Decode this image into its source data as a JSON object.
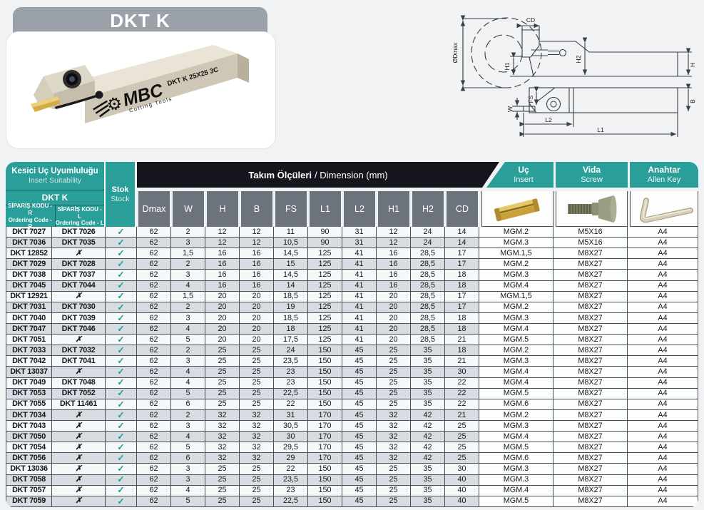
{
  "product": {
    "title": "DKT K",
    "marking": "DKT K 25X25 3C",
    "brand": "MBC",
    "brand_sub": "Cutting Tools"
  },
  "diagram": {
    "labels": {
      "dmax": "ØDmax",
      "cd": "CD",
      "h1": "H1",
      "h2": "H2",
      "h": "H",
      "fs": "FS",
      "w": "W",
      "l2": "L2",
      "l1": "L1",
      "b": "B"
    }
  },
  "colors": {
    "teal": "#2a9e98",
    "banner_dark": "#15151e",
    "header_gray": "#6d737d",
    "row_alt": "#d7dce2",
    "check_green": "#1fa396",
    "title_gray": "#9aa1a8",
    "insert_gold": "#d2a93f"
  },
  "table": {
    "header": {
      "insert_suitability_tr": "Kesici Uç Uyumluluğu",
      "insert_suitability_en": "Insert Suitability",
      "series": "DKT K",
      "code_r_tr": "SİPARİŞ KODU - R",
      "code_r_en": "Ordering Code - R",
      "code_l_tr": "SİPARİŞ KODU - L",
      "code_l_en": "Ordering Code - L",
      "stock_tr": "Stok",
      "stock_en": "Stock",
      "dimensions_tr": "Takım Ölçüleri",
      "dimensions_en": "/ Dimension (mm)",
      "dim_columns": [
        "Dmax",
        "W",
        "H",
        "B",
        "FS",
        "L1",
        "L2",
        "H1",
        "H2",
        "CD"
      ],
      "insert_tr": "Uç",
      "insert_en": "Insert",
      "screw_tr": "Vida",
      "screw_en": "Screw",
      "key_tr": "Anahtar",
      "key_en": "Allen Key"
    },
    "rows": [
      {
        "r": "DKT 7027",
        "l": "DKT 7026",
        "stock": "✓",
        "dims": [
          "62",
          "2",
          "12",
          "12",
          "11",
          "90",
          "31",
          "12",
          "24",
          "14"
        ],
        "insert": "MGM.2",
        "screw": "M5X16",
        "key": "A4"
      },
      {
        "r": "DKT 7036",
        "l": "DKT 7035",
        "stock": "✓",
        "dims": [
          "62",
          "3",
          "12",
          "12",
          "10,5",
          "90",
          "31",
          "12",
          "24",
          "14"
        ],
        "insert": "MGM.3",
        "screw": "M5X16",
        "key": "A4"
      },
      {
        "r": "DKT 12852",
        "l": "✗",
        "stock": "✓",
        "dims": [
          "62",
          "1,5",
          "16",
          "16",
          "14,5",
          "125",
          "41",
          "16",
          "28,5",
          "17"
        ],
        "insert": "MGM.1,5",
        "screw": "M8X27",
        "key": "A4"
      },
      {
        "r": "DKT 7029",
        "l": "DKT 7028",
        "stock": "✓",
        "dims": [
          "62",
          "2",
          "16",
          "16",
          "15",
          "125",
          "41",
          "16",
          "28,5",
          "17"
        ],
        "insert": "MGM.2",
        "screw": "M8X27",
        "key": "A4"
      },
      {
        "r": "DKT 7038",
        "l": "DKT 7037",
        "stock": "✓",
        "dims": [
          "62",
          "3",
          "16",
          "16",
          "14,5",
          "125",
          "41",
          "16",
          "28,5",
          "18"
        ],
        "insert": "MGM.3",
        "screw": "M8X27",
        "key": "A4"
      },
      {
        "r": "DKT 7045",
        "l": "DKT 7044",
        "stock": "✓",
        "dims": [
          "62",
          "4",
          "16",
          "16",
          "14",
          "125",
          "41",
          "16",
          "28,5",
          "18"
        ],
        "insert": "MGM.4",
        "screw": "M8X27",
        "key": "A4"
      },
      {
        "r": "DKT 12921",
        "l": "✗",
        "stock": "✓",
        "dims": [
          "62",
          "1,5",
          "20",
          "20",
          "18,5",
          "125",
          "41",
          "20",
          "28,5",
          "17"
        ],
        "insert": "MGM.1,5",
        "screw": "M8X27",
        "key": "A4"
      },
      {
        "r": "DKT 7031",
        "l": "DKT 7030",
        "stock": "✓",
        "dims": [
          "62",
          "2",
          "20",
          "20",
          "19",
          "125",
          "41",
          "20",
          "28,5",
          "17"
        ],
        "insert": "MGM.2",
        "screw": "M8X27",
        "key": "A4"
      },
      {
        "r": "DKT 7040",
        "l": "DKT 7039",
        "stock": "✓",
        "dims": [
          "62",
          "3",
          "20",
          "20",
          "18,5",
          "125",
          "41",
          "20",
          "28,5",
          "18"
        ],
        "insert": "MGM.3",
        "screw": "M8X27",
        "key": "A4"
      },
      {
        "r": "DKT 7047",
        "l": "DKT 7046",
        "stock": "✓",
        "dims": [
          "62",
          "4",
          "20",
          "20",
          "18",
          "125",
          "41",
          "20",
          "28,5",
          "18"
        ],
        "insert": "MGM.4",
        "screw": "M8X27",
        "key": "A4"
      },
      {
        "r": "DKT 7051",
        "l": "✗",
        "stock": "✓",
        "dims": [
          "62",
          "5",
          "20",
          "20",
          "17,5",
          "125",
          "41",
          "20",
          "28,5",
          "21"
        ],
        "insert": "MGM.5",
        "screw": "M8X27",
        "key": "A4"
      },
      {
        "r": "DKT 7033",
        "l": "DKT 7032",
        "stock": "✓",
        "dims": [
          "62",
          "2",
          "25",
          "25",
          "24",
          "150",
          "45",
          "25",
          "35",
          "18"
        ],
        "insert": "MGM.2",
        "screw": "M8X27",
        "key": "A4"
      },
      {
        "r": "DKT 7042",
        "l": "DKT 7041",
        "stock": "✓",
        "dims": [
          "62",
          "3",
          "25",
          "25",
          "23,5",
          "150",
          "45",
          "25",
          "35",
          "21"
        ],
        "insert": "MGM.3",
        "screw": "M8X27",
        "key": "A4"
      },
      {
        "r": "DKT 13037",
        "l": "✗",
        "stock": "✓",
        "dims": [
          "62",
          "4",
          "25",
          "25",
          "23",
          "150",
          "45",
          "25",
          "35",
          "30"
        ],
        "insert": "MGM.4",
        "screw": "M8X27",
        "key": "A4"
      },
      {
        "r": "DKT 7049",
        "l": "DKT 7048",
        "stock": "✓",
        "dims": [
          "62",
          "4",
          "25",
          "25",
          "23",
          "150",
          "45",
          "25",
          "35",
          "22"
        ],
        "insert": "MGM.4",
        "screw": "M8X27",
        "key": "A4"
      },
      {
        "r": "DKT 7053",
        "l": "DKT 7052",
        "stock": "✓",
        "dims": [
          "62",
          "5",
          "25",
          "25",
          "22,5",
          "150",
          "45",
          "25",
          "35",
          "22"
        ],
        "insert": "MGM.5",
        "screw": "M8X27",
        "key": "A4"
      },
      {
        "r": "DKT 7055",
        "l": "DKT 11461",
        "stock": "✓",
        "dims": [
          "62",
          "6",
          "25",
          "25",
          "22",
          "150",
          "45",
          "25",
          "35",
          "22"
        ],
        "insert": "MGM.6",
        "screw": "M8X27",
        "key": "A4"
      },
      {
        "r": "DKT 7034",
        "l": "✗",
        "stock": "✓",
        "dims": [
          "62",
          "2",
          "32",
          "32",
          "31",
          "170",
          "45",
          "32",
          "42",
          "21"
        ],
        "insert": "MGM.2",
        "screw": "M8X27",
        "key": "A4"
      },
      {
        "r": "DKT 7043",
        "l": "✗",
        "stock": "✓",
        "dims": [
          "62",
          "3",
          "32",
          "32",
          "30,5",
          "170",
          "45",
          "32",
          "42",
          "25"
        ],
        "insert": "MGM.3",
        "screw": "M8X27",
        "key": "A4"
      },
      {
        "r": "DKT 7050",
        "l": "✗",
        "stock": "✓",
        "dims": [
          "62",
          "4",
          "32",
          "32",
          "30",
          "170",
          "45",
          "32",
          "42",
          "25"
        ],
        "insert": "MGM.4",
        "screw": "M8X27",
        "key": "A4"
      },
      {
        "r": "DKT 7054",
        "l": "✗",
        "stock": "✓",
        "dims": [
          "62",
          "5",
          "32",
          "32",
          "29,5",
          "170",
          "45",
          "32",
          "42",
          "25"
        ],
        "insert": "MGM.5",
        "screw": "M8X27",
        "key": "A4"
      },
      {
        "r": "DKT 7056",
        "l": "✗",
        "stock": "✓",
        "dims": [
          "62",
          "6",
          "32",
          "32",
          "29",
          "170",
          "45",
          "32",
          "42",
          "25"
        ],
        "insert": "MGM.6",
        "screw": "M8X27",
        "key": "A4"
      },
      {
        "r": "DKT 13036",
        "l": "✗",
        "stock": "✓",
        "dims": [
          "62",
          "3",
          "25",
          "25",
          "22",
          "150",
          "45",
          "25",
          "35",
          "30"
        ],
        "insert": "MGM.3",
        "screw": "M8X27",
        "key": "A4"
      },
      {
        "r": "DKT 7058",
        "l": "✗",
        "stock": "✓",
        "dims": [
          "62",
          "3",
          "25",
          "25",
          "23,5",
          "150",
          "45",
          "25",
          "35",
          "40"
        ],
        "insert": "MGM.3",
        "screw": "M8X27",
        "key": "A4"
      },
      {
        "r": "DKT 7057",
        "l": "✗",
        "stock": "✓",
        "dims": [
          "62",
          "4",
          "25",
          "25",
          "23",
          "150",
          "45",
          "25",
          "35",
          "40"
        ],
        "insert": "MGM.4",
        "screw": "M8X27",
        "key": "A4"
      },
      {
        "r": "DKT 7059",
        "l": "✗",
        "stock": "✓",
        "dims": [
          "62",
          "5",
          "25",
          "25",
          "22,5",
          "150",
          "45",
          "25",
          "35",
          "40"
        ],
        "insert": "MGM.5",
        "screw": "M8X27",
        "key": "A4"
      }
    ]
  }
}
